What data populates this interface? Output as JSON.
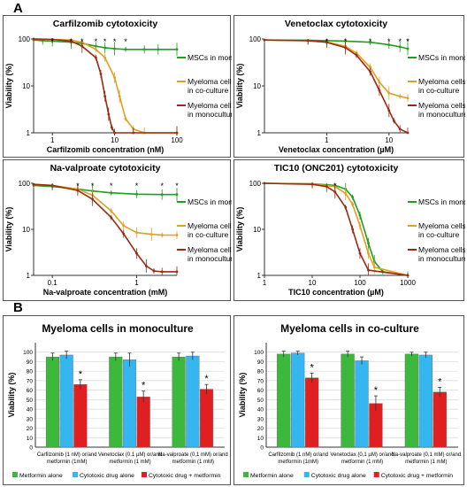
{
  "section_labels": [
    "A",
    "B"
  ],
  "colors": {
    "msc": "#1f9e1f",
    "co": "#e0a020",
    "mono": "#9b2a10",
    "metformin": "#3cb83c",
    "drug": "#36b6f0",
    "combo": "#e02020",
    "star": "#222222",
    "ns": "#3050c8"
  },
  "chart_data": [
    {
      "type": "line",
      "title": "Carfilzomib cytotoxicity",
      "xlabel": "Carfilzomib concentration (nM)",
      "ylabel": "Viability (%)",
      "xscale": "log",
      "yscale": "log",
      "xlim": [
        0.5,
        100
      ],
      "ylim": [
        1,
        100
      ],
      "xticks": [
        1,
        10,
        100
      ],
      "xtick_labels": [
        "1",
        "10",
        "100"
      ],
      "yticks": [
        1,
        10,
        100
      ],
      "ytick_labels": [
        "1",
        "10",
        "100"
      ],
      "legend": [
        "MSCs in monoculture",
        "Myeloma cells in co-culture",
        "Myeloma cells in monoculture"
      ],
      "series": [
        {
          "name": "MSCs in monoculture",
          "color": "#1f9e1f",
          "x": [
            0.5,
            0.7,
            1,
            2,
            3,
            5,
            7,
            10,
            15,
            30,
            50,
            100
          ],
          "y": [
            95,
            92,
            90,
            85,
            80,
            70,
            65,
            62,
            60,
            60,
            60,
            60
          ]
        },
        {
          "name": "Myeloma cells in co-culture",
          "color": "#e0a020",
          "x": [
            0.5,
            1,
            2,
            3,
            5,
            7,
            10,
            12,
            15,
            20,
            30,
            100
          ],
          "y": [
            100,
            98,
            95,
            85,
            60,
            40,
            15,
            6,
            2,
            1.2,
            1,
            1
          ]
        },
        {
          "name": "Myeloma cells in monoculture",
          "color": "#9b2a10",
          "x": [
            0.5,
            1,
            2,
            3,
            5,
            6,
            7,
            8,
            9,
            10,
            20,
            100
          ],
          "y": [
            100,
            98,
            90,
            70,
            40,
            18,
            6,
            2.5,
            1.3,
            1,
            1,
            1
          ]
        }
      ],
      "markers": [
        "*",
        "*",
        "*",
        "*",
        "*",
        "*",
        "*"
      ]
    },
    {
      "type": "line",
      "title": "Venetoclax cytotoxicity",
      "xlabel": "Venetoclax concentration (µM)",
      "ylabel": "Viability (%)",
      "xscale": "log",
      "yscale": "log",
      "xlim": [
        0.1,
        20
      ],
      "ylim": [
        1,
        100
      ],
      "xticks": [
        1,
        10
      ],
      "xtick_labels": [
        "1",
        "10"
      ],
      "yticks": [
        1,
        10,
        100
      ],
      "ytick_labels": [
        "1",
        "10",
        "100"
      ],
      "legend": [
        "MSCs in monoculture",
        "Myeloma cells in co-culture",
        "Myeloma cells in monoculture"
      ],
      "series": [
        {
          "name": "MSCs in monoculture",
          "color": "#1f9e1f",
          "x": [
            0.1,
            0.5,
            1,
            2,
            5,
            10,
            15,
            20
          ],
          "y": [
            95,
            94,
            92,
            90,
            85,
            75,
            68,
            62
          ]
        },
        {
          "name": "Myeloma cells in co-culture",
          "color": "#e0a020",
          "x": [
            0.1,
            0.5,
            1,
            2,
            3,
            5,
            7,
            10,
            15,
            20
          ],
          "y": [
            95,
            92,
            85,
            70,
            50,
            25,
            12,
            7,
            6,
            5.5
          ]
        },
        {
          "name": "Myeloma cells in monoculture",
          "color": "#9b2a10",
          "x": [
            0.1,
            0.5,
            1,
            2,
            3,
            5,
            7,
            10,
            12,
            15,
            20
          ],
          "y": [
            95,
            92,
            85,
            65,
            45,
            20,
            8,
            3,
            1.8,
            1.2,
            1
          ]
        }
      ],
      "markers": [
        "*",
        "*",
        "*",
        "*",
        "*",
        "*",
        "*"
      ]
    },
    {
      "type": "line",
      "title": "Na-valproate cytotoxicity",
      "xlabel": "Na-valproate concentration (mM)",
      "ylabel": "Viability (%)",
      "xscale": "log",
      "yscale": "log",
      "xlim": [
        0.06,
        3
      ],
      "ylim": [
        1,
        100
      ],
      "xticks": [
        0.1,
        1
      ],
      "xtick_labels": [
        "0.1",
        "1"
      ],
      "yticks": [
        1,
        10,
        100
      ],
      "ytick_labels": [
        "1",
        "10",
        "100"
      ],
      "legend": [
        "MSCs in monoculture",
        "Myeloma cells in co-culture",
        "Myeloma cells in monoculture"
      ],
      "series": [
        {
          "name": "MSCs in monoculture",
          "color": "#1f9e1f",
          "x": [
            0.06,
            0.1,
            0.2,
            0.3,
            0.5,
            1,
            2,
            3
          ],
          "y": [
            90,
            85,
            75,
            68,
            62,
            58,
            57,
            57
          ]
        },
        {
          "name": "Myeloma cells in co-culture",
          "color": "#e0a020",
          "x": [
            0.06,
            0.1,
            0.2,
            0.3,
            0.5,
            0.7,
            1,
            1.5,
            2,
            3
          ],
          "y": [
            95,
            90,
            75,
            55,
            25,
            12,
            8.5,
            7.8,
            7.5,
            7.5
          ]
        },
        {
          "name": "Myeloma cells in monoculture",
          "color": "#9b2a10",
          "x": [
            0.06,
            0.1,
            0.2,
            0.3,
            0.5,
            0.7,
            1,
            1.3,
            1.6,
            2,
            3
          ],
          "y": [
            95,
            90,
            70,
            45,
            18,
            8,
            3,
            1.6,
            1.25,
            1.2,
            1.2
          ]
        }
      ],
      "markers": [
        "*",
        "*",
        "*",
        "*",
        "*",
        "*"
      ]
    },
    {
      "type": "line",
      "title": "TIC10 (ONC201) cytotoxicity",
      "xlabel": "TIC10 concentration (µM)",
      "ylabel": "Viability (%)",
      "xscale": "log",
      "yscale": "log",
      "xlim": [
        1,
        1000
      ],
      "ylim": [
        1,
        100
      ],
      "xticks": [
        1,
        10,
        100,
        1000
      ],
      "xtick_labels": [
        "1",
        "10",
        "100",
        "1000"
      ],
      "yticks": [
        1,
        10,
        100
      ],
      "ytick_labels": [
        "1",
        "10",
        "100"
      ],
      "legend": [
        "MSCs in monoculture",
        "Myeloma cells in co-culture",
        "Myeloma cells in monoculture"
      ],
      "series": [
        {
          "name": "MSCs in monoculture",
          "color": "#1f9e1f",
          "x": [
            1,
            10,
            30,
            50,
            70,
            100,
            150,
            200,
            300,
            1000
          ],
          "y": [
            100,
            98,
            90,
            75,
            50,
            20,
            5,
            2,
            1.2,
            1
          ]
        },
        {
          "name": "Myeloma cells in co-culture",
          "color": "#e0a020",
          "x": [
            1,
            10,
            30,
            50,
            70,
            100,
            150,
            200,
            1000
          ],
          "y": [
            100,
            97,
            85,
            60,
            35,
            12,
            3,
            1.5,
            1
          ]
        },
        {
          "name": "Myeloma cells in monoculture",
          "color": "#9b2a10",
          "x": [
            1,
            10,
            20,
            30,
            50,
            70,
            100,
            150,
            1000
          ],
          "y": [
            100,
            95,
            85,
            65,
            30,
            10,
            3,
            1.3,
            1
          ]
        }
      ],
      "markers": [
        "*"
      ]
    },
    {
      "type": "bar",
      "title": "Myeloma cells in monoculture",
      "ylabel": "Viability (%)",
      "ylim": [
        0,
        110
      ],
      "yticks": [
        0,
        10,
        20,
        30,
        40,
        50,
        60,
        70,
        80,
        90,
        100
      ],
      "ytick_labels": [
        "0",
        "10",
        "20",
        "30",
        "40",
        "50",
        "60",
        "70",
        "80",
        "90",
        "100"
      ],
      "categories": [
        "Carfilzomib (1 nM) or/and metformin (1mM)",
        "Venetoclax (0.1 µM) or/and metformin (1 mM)",
        "Na-valproate (0,1 mM) or/and metformin (1 mM)"
      ],
      "series": [
        {
          "name": "Metformin alone",
          "color": "#3cb83c",
          "values": [
            95,
            95,
            95
          ],
          "errors": [
            4,
            4,
            4
          ]
        },
        {
          "name": "Cytotoxic drug alone",
          "color": "#36b6f0",
          "values": [
            97,
            92,
            96
          ],
          "errors": [
            4,
            7,
            4
          ]
        },
        {
          "name": "Cytotoxic drug + metformin",
          "color": "#e02020",
          "values": [
            66,
            53,
            61
          ],
          "errors": [
            5,
            6,
            5
          ]
        }
      ],
      "significance": [
        "*",
        "*",
        "*"
      ]
    },
    {
      "type": "bar",
      "title": "Myeloma cells in co-culture",
      "ylabel": "Viability (%)",
      "ylim": [
        0,
        110
      ],
      "yticks": [
        0,
        10,
        20,
        30,
        40,
        50,
        60,
        70,
        80,
        90,
        100
      ],
      "ytick_labels": [
        "0",
        "10",
        "20",
        "30",
        "40",
        "50",
        "60",
        "70",
        "80",
        "90",
        "100"
      ],
      "categories": [
        "Carfilzomib (1 nM) or/and metformin (1mM)",
        "Venetoclax (0,1 µM) or/and metformin (1 mM)",
        "Na-valproate (0,1 mM) or/and metformin (1 mM)"
      ],
      "series": [
        {
          "name": "Metformin alone",
          "color": "#3cb83c",
          "values": [
            98,
            98,
            98
          ],
          "errors": [
            3,
            3,
            2
          ]
        },
        {
          "name": "Cytotoxic drug alone",
          "color": "#36b6f0",
          "values": [
            99,
            91,
            97
          ],
          "errors": [
            2,
            4,
            3
          ]
        },
        {
          "name": "Cytotoxic drug + metformin",
          "color": "#e02020",
          "values": [
            73,
            46,
            58
          ],
          "errors": [
            5,
            8,
            5
          ]
        }
      ],
      "significance": [
        "*",
        "*",
        "*"
      ]
    }
  ]
}
